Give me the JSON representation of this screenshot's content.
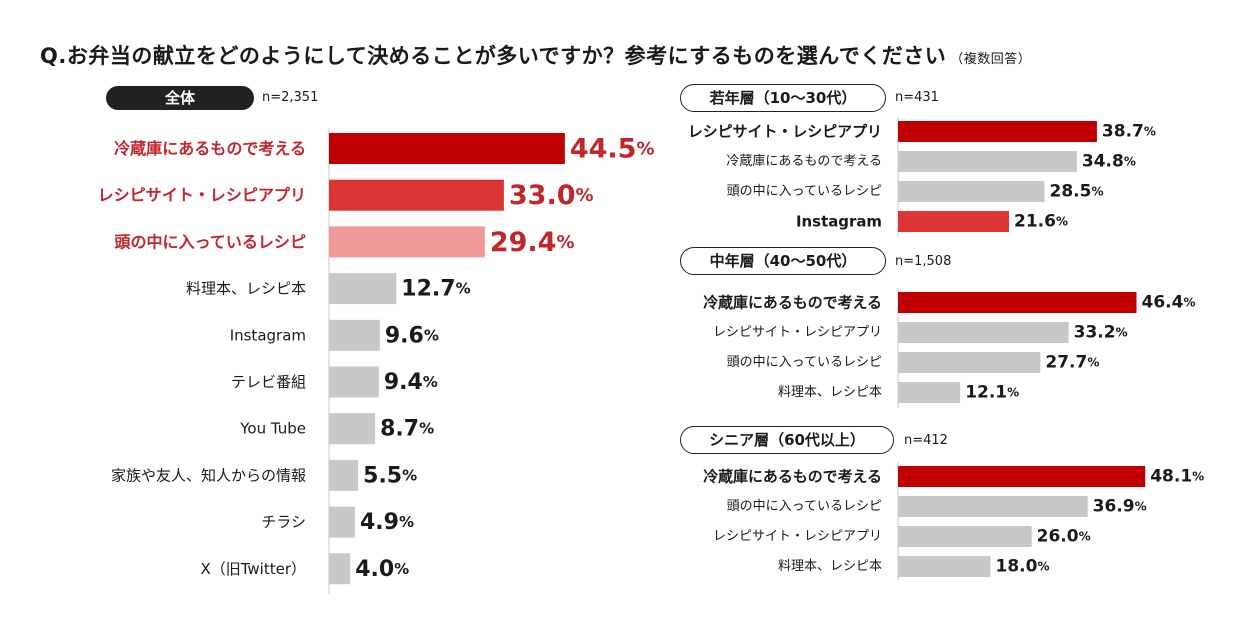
{
  "question": {
    "text": "Q.お弁当の献立をどのようにして決めることが多いですか？参考にするものを選んでください",
    "note": "（複数回答）"
  },
  "colors": {
    "dark_red": "#c00000",
    "mid_red": "#db3535",
    "pink": "#f09a9a",
    "gray": "#c8c8c8",
    "highlight_text": "#c0262c"
  },
  "chart_data": [
    {
      "type": "bar",
      "orientation": "horizontal",
      "group": "全体",
      "n": "n=2,351",
      "unit": "%",
      "xlim": [
        0,
        50
      ],
      "categories": [
        "冷蔵庫にあるもので考える",
        "レシピサイト・レシピアプリ",
        "頭の中に入っているレシピ",
        "料理本、レシピ本",
        "Instagram",
        "テレビ番組",
        "You Tube",
        "家族や友人、知人からの情報",
        "チラシ",
        "X（旧Twitter）"
      ],
      "values": [
        44.5,
        33.0,
        29.4,
        12.7,
        9.6,
        9.4,
        8.7,
        5.5,
        4.9,
        4.0
      ],
      "value_labels": [
        "44.5",
        "33.0",
        "29.4",
        "12.7",
        "9.6",
        "9.4",
        "8.7",
        "5.5",
        "4.9",
        "4.0"
      ],
      "emphasis": [
        "dark",
        "mid",
        "light",
        "none",
        "none",
        "none",
        "none",
        "none",
        "none",
        "none"
      ]
    },
    {
      "type": "bar",
      "orientation": "horizontal",
      "group": "若年層（10〜30代）",
      "n": "n=431",
      "unit": "%",
      "xlim": [
        0,
        50
      ],
      "categories": [
        "レシピサイト・レシピアプリ",
        "冷蔵庫にあるもので考える",
        "頭の中に入っているレシピ",
        "Instagram"
      ],
      "values": [
        38.7,
        34.8,
        28.5,
        21.6
      ],
      "value_labels": [
        "38.7",
        "34.8",
        "28.5",
        "21.6"
      ],
      "emphasis": [
        "dark",
        "none",
        "none",
        "mid"
      ]
    },
    {
      "type": "bar",
      "orientation": "horizontal",
      "group": "中年層（40〜50代）",
      "n": "n=1,508",
      "unit": "%",
      "xlim": [
        0,
        50
      ],
      "categories": [
        "冷蔵庫にあるもので考える",
        "レシピサイト・レシピアプリ",
        "頭の中に入っているレシピ",
        "料理本、レシピ本"
      ],
      "values": [
        46.4,
        33.2,
        27.7,
        12.1
      ],
      "value_labels": [
        "46.4",
        "33.2",
        "27.7",
        "12.1"
      ],
      "emphasis": [
        "dark",
        "none",
        "none",
        "none"
      ]
    },
    {
      "type": "bar",
      "orientation": "horizontal",
      "group": "シニア層（60代以上）",
      "n": "n=412",
      "unit": "%",
      "xlim": [
        0,
        50
      ],
      "categories": [
        "冷蔵庫にあるもので考える",
        "頭の中に入っているレシピ",
        "レシピサイト・レシピアプリ",
        "料理本、レシピ本"
      ],
      "values": [
        48.1,
        36.9,
        26.0,
        18.0
      ],
      "value_labels": [
        "48.1",
        "36.9",
        "26.0",
        "18.0"
      ],
      "emphasis": [
        "dark",
        "none",
        "none",
        "none"
      ]
    }
  ]
}
